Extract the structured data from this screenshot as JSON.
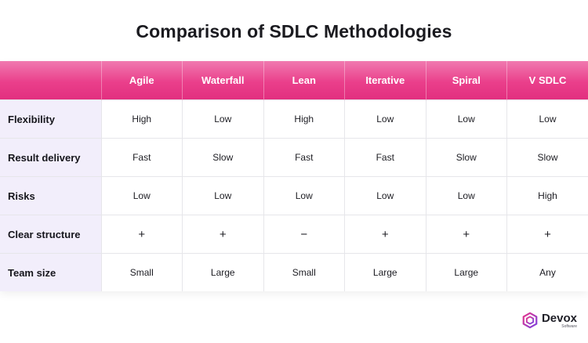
{
  "title": "Comparison of SDLC Methodologies",
  "table": {
    "columns": [
      "Agile",
      "Waterfall",
      "Lean",
      "Iterative",
      "Spiral",
      "V SDLC"
    ],
    "rows": [
      {
        "label": "Flexibility",
        "cells": [
          "High",
          "Low",
          "High",
          "Low",
          "Low",
          "Low"
        ]
      },
      {
        "label": "Result delivery",
        "cells": [
          "Fast",
          "Slow",
          "Fast",
          "Fast",
          "Slow",
          "Slow"
        ]
      },
      {
        "label": "Risks",
        "cells": [
          "Low",
          "Low",
          "Low",
          "Low",
          "Low",
          "High"
        ]
      },
      {
        "label": "Clear structure",
        "cells": [
          "+",
          "+",
          "−",
          "+",
          "+",
          "+"
        ]
      },
      {
        "label": "Team size",
        "cells": [
          "Small",
          "Large",
          "Small",
          "Large",
          "Large",
          "Any"
        ]
      }
    ]
  },
  "logo": {
    "name": "Devox",
    "subtitle": "Software"
  },
  "colors": {
    "header_gradient_top": "#f07ab0",
    "header_gradient_bottom": "#e22f7f",
    "row_head_background": "#f2eefb",
    "logo_mark_pink": "#e8358a",
    "logo_mark_purple": "#7a3fe0"
  },
  "icons": {
    "logo_mark": "devox-hexagon-logo-icon"
  }
}
